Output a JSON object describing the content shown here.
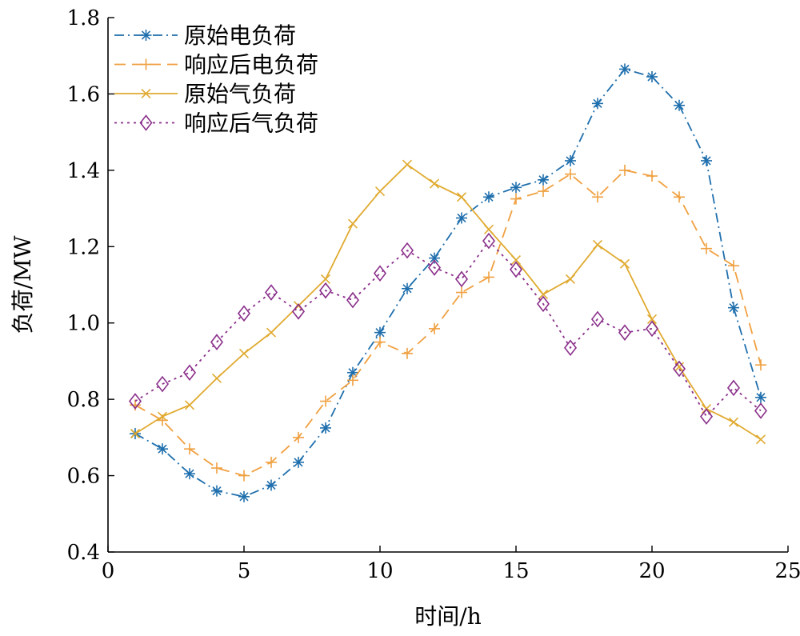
{
  "chart_data": {
    "type": "line",
    "xlabel": "时间/h",
    "ylabel": "负荷/MW",
    "xlim": [
      0,
      25
    ],
    "ylim": [
      0.4,
      1.8
    ],
    "xticks": [
      0,
      5,
      10,
      15,
      20,
      25
    ],
    "yticks": [
      0.4,
      0.6,
      0.8,
      1.0,
      1.2,
      1.4,
      1.6,
      1.8
    ],
    "ytick_labels": [
      "0.4",
      "0.6",
      "0.8",
      "1.0",
      "1.2",
      "1.4",
      "1.6",
      "1.8"
    ],
    "grid": false,
    "legend_position": "top-left",
    "x": [
      1,
      2,
      3,
      4,
      5,
      6,
      7,
      8,
      9,
      10,
      11,
      12,
      13,
      14,
      15,
      16,
      17,
      18,
      19,
      20,
      21,
      22,
      23,
      24
    ],
    "series": [
      {
        "name": "原始电负荷",
        "color": "#1f6fad",
        "dash": "dashdot",
        "marker": "asterisk",
        "values": [
          0.71,
          0.67,
          0.605,
          0.56,
          0.545,
          0.575,
          0.635,
          0.725,
          0.87,
          0.975,
          1.09,
          1.17,
          1.275,
          1.33,
          1.355,
          1.375,
          1.425,
          1.575,
          1.665,
          1.645,
          1.57,
          1.425,
          1.04,
          0.805
        ]
      },
      {
        "name": "响应后电负荷",
        "color": "#f0a040",
        "dash": "dashed",
        "marker": "plus",
        "values": [
          0.785,
          0.745,
          0.67,
          0.62,
          0.6,
          0.635,
          0.7,
          0.795,
          0.85,
          0.95,
          0.92,
          0.985,
          1.08,
          1.12,
          1.325,
          1.345,
          1.39,
          1.33,
          1.4,
          1.385,
          1.33,
          1.195,
          1.15,
          0.89
        ]
      },
      {
        "name": "原始气负荷",
        "color": "#e0aa30",
        "dash": "solid",
        "marker": "x",
        "values": [
          0.71,
          0.755,
          0.785,
          0.855,
          0.92,
          0.975,
          1.045,
          1.115,
          1.26,
          1.345,
          1.415,
          1.365,
          1.33,
          1.245,
          1.165,
          1.075,
          1.115,
          1.205,
          1.155,
          1.01,
          0.885,
          0.775,
          0.74,
          0.695
        ]
      },
      {
        "name": "响应后气负荷",
        "color": "#8a2f8a",
        "dash": "dotted",
        "marker": "diamond",
        "values": [
          0.795,
          0.84,
          0.87,
          0.95,
          1.025,
          1.08,
          1.03,
          1.085,
          1.06,
          1.13,
          1.19,
          1.145,
          1.115,
          1.215,
          1.14,
          1.05,
          0.935,
          1.01,
          0.975,
          0.985,
          0.88,
          0.755,
          0.83,
          0.77
        ]
      }
    ]
  }
}
